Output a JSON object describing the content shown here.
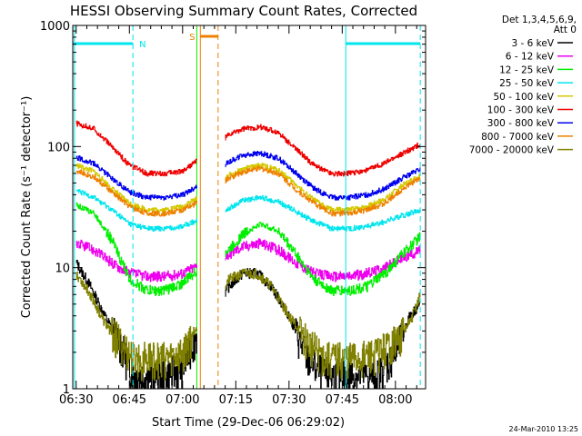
{
  "chart_data": {
    "type": "line",
    "title": "HESSI Observing Summary Count Rates, Corrected",
    "xlabel": "Start Time (29-Dec-06 06:29:02)",
    "ylabel": "Corrected Count Rate (s⁻¹ detector⁻¹)",
    "y_scale": "log",
    "ylim": [
      1,
      1000
    ],
    "xlim": [
      "06:29:02",
      "08:08:30"
    ],
    "x_ticks": [
      "06:30",
      "06:45",
      "07:00",
      "07:15",
      "07:30",
      "07:45",
      "08:00"
    ],
    "y_ticks": [
      "1",
      "10",
      "100",
      "1000"
    ],
    "legend_header": [
      "Det 1,3,4,5,6,9,",
      "Att 0"
    ],
    "legend_position": "right",
    "timestamp": "24-Mar-2010 13:25",
    "data_gap": [
      "07:04",
      "07:12"
    ],
    "flags": [
      {
        "label": "N",
        "color": "#00e5ee",
        "intervals": [
          [
            "06:29",
            "06:46"
          ],
          [
            "07:46",
            "08:07"
          ]
        ]
      },
      {
        "label": "S",
        "color": "#ee8000",
        "intervals": [
          [
            "07:05",
            "07:10"
          ]
        ]
      }
    ],
    "series": [
      {
        "name": "3 - 6 keV",
        "color": "#000000",
        "x": [
          "06:30",
          "06:34",
          "06:38",
          "06:42",
          "06:46",
          "06:50",
          "06:55",
          "07:00",
          "07:03",
          "07:13",
          "07:17",
          "07:21",
          "07:25",
          "07:30",
          "07:35",
          "07:40",
          "07:45",
          "07:50",
          "07:55",
          "08:00",
          "08:04",
          "08:07"
        ],
        "values": [
          11,
          7,
          4,
          2.5,
          1.3,
          1.3,
          1.3,
          1.5,
          2.5,
          7,
          9,
          9,
          7,
          4,
          1.8,
          1.3,
          1.3,
          1.3,
          1.3,
          2,
          4,
          5
        ]
      },
      {
        "name": "6 - 12 keV",
        "color": "#ee00ee",
        "x": [
          "06:30",
          "06:35",
          "06:40",
          "06:45",
          "06:50",
          "06:55",
          "07:00",
          "07:03",
          "07:13",
          "07:17",
          "07:22",
          "07:27",
          "07:32",
          "07:37",
          "07:42",
          "07:47",
          "07:52",
          "07:57",
          "08:02",
          "08:07"
        ],
        "values": [
          16,
          14,
          11,
          9,
          8.5,
          8.5,
          9,
          10,
          13,
          15,
          16,
          14,
          11,
          9,
          8.5,
          8.5,
          9,
          10,
          12,
          14
        ]
      },
      {
        "name": "12 - 25 keV",
        "color": "#00ee00",
        "x": [
          "06:30",
          "06:35",
          "06:40",
          "06:45",
          "06:50",
          "06:55",
          "07:00",
          "07:03",
          "07:13",
          "07:17",
          "07:22",
          "07:27",
          "07:32",
          "07:37",
          "07:42",
          "07:47",
          "07:52",
          "07:57",
          "08:02",
          "08:07"
        ],
        "values": [
          33,
          28,
          17,
          8,
          6.5,
          6.5,
          7.5,
          9,
          14,
          19,
          23,
          20,
          13,
          8,
          6.5,
          6.5,
          7,
          9,
          13,
          18
        ]
      },
      {
        "name": "25 - 50 keV",
        "color": "#00e5ee",
        "x": [
          "06:30",
          "06:35",
          "06:40",
          "06:45",
          "06:50",
          "06:55",
          "07:00",
          "07:03",
          "07:13",
          "07:17",
          "07:22",
          "07:27",
          "07:32",
          "07:37",
          "07:42",
          "07:47",
          "07:52",
          "07:57",
          "08:02",
          "08:07"
        ],
        "values": [
          43,
          38,
          30,
          23,
          21,
          21,
          22,
          24,
          31,
          36,
          38,
          35,
          29,
          24,
          21,
          21,
          22,
          24,
          27,
          30
        ]
      },
      {
        "name": "50 - 100 keV",
        "color": "#d4c800",
        "x": [
          "06:30",
          "06:35",
          "06:40",
          "06:45",
          "06:50",
          "06:55",
          "07:00",
          "07:03",
          "07:13",
          "07:17",
          "07:22",
          "07:27",
          "07:32",
          "07:37",
          "07:42",
          "07:47",
          "07:52",
          "07:57",
          "08:02",
          "08:07"
        ],
        "values": [
          70,
          62,
          45,
          34,
          30,
          30,
          32,
          36,
          58,
          65,
          70,
          64,
          48,
          36,
          30,
          30,
          32,
          37,
          48,
          58
        ]
      },
      {
        "name": "100 - 300 keV",
        "color": "#ee0000",
        "x": [
          "06:30",
          "06:35",
          "06:40",
          "06:45",
          "06:50",
          "06:55",
          "07:00",
          "07:03",
          "07:13",
          "07:17",
          "07:22",
          "07:27",
          "07:32",
          "07:37",
          "07:42",
          "07:47",
          "07:52",
          "07:57",
          "08:02",
          "08:07"
        ],
        "values": [
          155,
          140,
          100,
          70,
          60,
          60,
          63,
          73,
          125,
          140,
          145,
          130,
          95,
          70,
          60,
          60,
          64,
          73,
          88,
          105
        ]
      },
      {
        "name": "300 - 800 keV",
        "color": "#0000ee",
        "x": [
          "06:30",
          "06:35",
          "06:40",
          "06:45",
          "06:50",
          "06:55",
          "07:00",
          "07:03",
          "07:13",
          "07:17",
          "07:22",
          "07:27",
          "07:32",
          "07:37",
          "07:42",
          "07:47",
          "07:52",
          "07:57",
          "08:02",
          "08:07"
        ],
        "values": [
          82,
          72,
          55,
          42,
          38,
          38,
          40,
          45,
          75,
          85,
          88,
          80,
          60,
          45,
          38,
          38,
          40,
          45,
          55,
          65
        ]
      },
      {
        "name": "800 - 7000 keV",
        "color": "#ee8000",
        "x": [
          "06:30",
          "06:35",
          "06:40",
          "06:45",
          "06:50",
          "06:55",
          "07:00",
          "07:03",
          "07:13",
          "07:17",
          "07:22",
          "07:27",
          "07:32",
          "07:37",
          "07:42",
          "07:47",
          "07:52",
          "07:57",
          "08:02",
          "08:07"
        ],
        "values": [
          63,
          56,
          42,
          32,
          28,
          28,
          30,
          33,
          55,
          62,
          66,
          60,
          44,
          34,
          28,
          28,
          30,
          34,
          45,
          55
        ]
      },
      {
        "name": "7000 - 20000 keV",
        "color": "#808000",
        "x": [
          "06:30",
          "06:34",
          "06:38",
          "06:42",
          "06:46",
          "06:50",
          "06:55",
          "07:00",
          "07:03",
          "07:13",
          "07:17",
          "07:21",
          "07:25",
          "07:30",
          "07:35",
          "07:40",
          "07:45",
          "07:50",
          "07:55",
          "08:00",
          "08:04",
          "08:07"
        ],
        "values": [
          9,
          6,
          3.5,
          2.5,
          1.8,
          1.8,
          1.8,
          2,
          3,
          8,
          9,
          9,
          7,
          4,
          2.5,
          1.8,
          1.8,
          1.8,
          2,
          2.5,
          3.5,
          6
        ]
      }
    ]
  }
}
